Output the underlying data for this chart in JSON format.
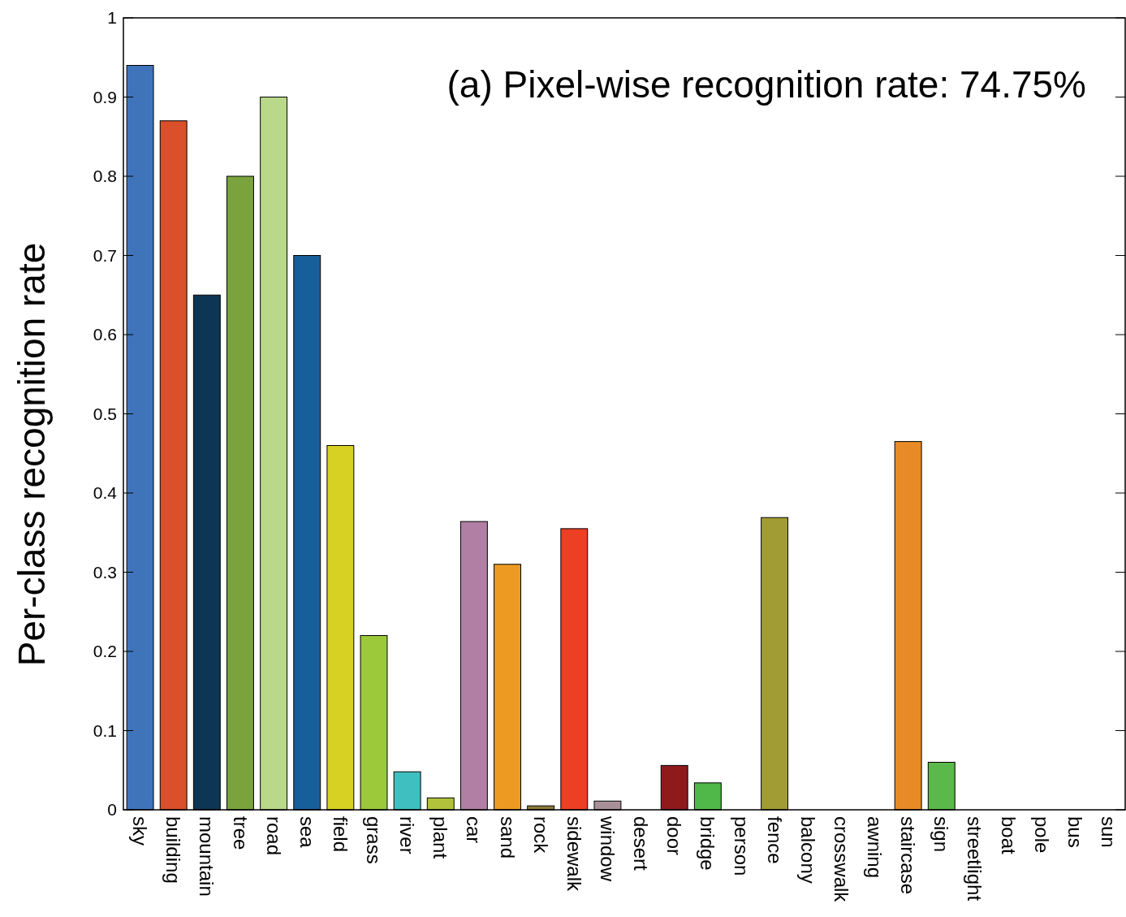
{
  "chart_data": {
    "type": "bar",
    "title": "(a) Pixel-wise recognition rate: 74.75%",
    "ylabel": "Per-class recognition rate",
    "categories": [
      "sky",
      "building",
      "mountain",
      "tree",
      "road",
      "sea",
      "field",
      "grass",
      "river",
      "plant",
      "car",
      "sand",
      "rock",
      "sidewalk",
      "window",
      "desert",
      "door",
      "bridge",
      "person",
      "fence",
      "balcony",
      "crosswalk",
      "awning",
      "staircase",
      "sign",
      "streetlight",
      "boat",
      "pole",
      "bus",
      "sun"
    ],
    "values": [
      0.94,
      0.87,
      0.65,
      0.8,
      0.9,
      0.7,
      0.46,
      0.22,
      0.048,
      0.015,
      0.364,
      0.31,
      0.005,
      0.355,
      0.011,
      0,
      0.056,
      0.034,
      0,
      0.369,
      0,
      0,
      0,
      0.465,
      0.06,
      0,
      0,
      0,
      0,
      0
    ],
    "colors": [
      "#3f74bb",
      "#d9502a",
      "#0c3653",
      "#7aa33e",
      "#b9d88a",
      "#165f9b",
      "#d6d123",
      "#9bc93a",
      "#3fbfbf",
      "#b1c23a",
      "#b07fa3",
      "#ed9a23",
      "#8a7a3a",
      "#ec3f24",
      "#a89099",
      "#808080",
      "#8e1a1c",
      "#4fb848",
      "#808080",
      "#a29c34",
      "#808080",
      "#808080",
      "#808080",
      "#e88a26",
      "#5bb84a",
      "#808080",
      "#808080",
      "#808080",
      "#808080",
      "#808080"
    ],
    "ylim": [
      0,
      1
    ],
    "yticks": [
      0,
      0.1,
      0.2,
      0.3,
      0.4,
      0.5,
      0.6,
      0.7,
      0.8,
      0.9,
      1
    ]
  }
}
